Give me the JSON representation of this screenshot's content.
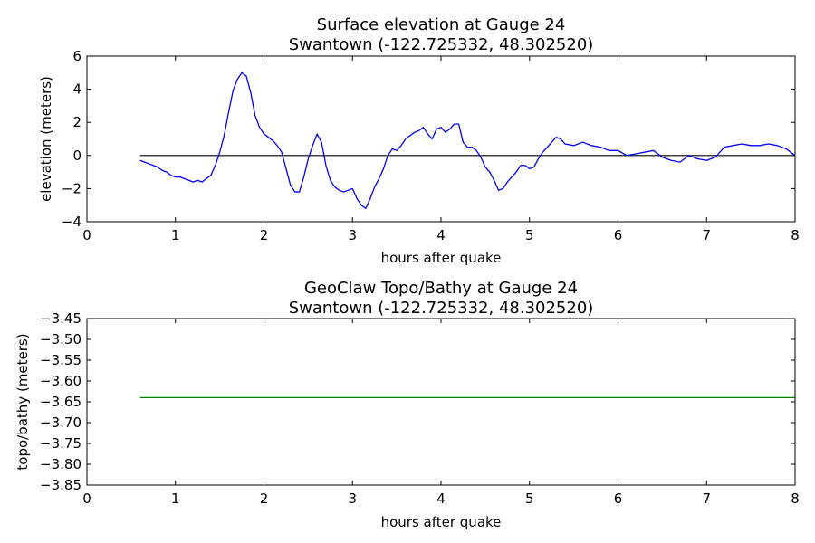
{
  "chart_data": [
    {
      "type": "line",
      "title": "Surface elevation at Gauge 24",
      "subtitle": "Swantown  (-122.725332, 48.302520)",
      "xlabel": "hours after quake",
      "ylabel": "elevation (meters)",
      "xlim": [
        0,
        8
      ],
      "ylim": [
        -4,
        6
      ],
      "xticks": [
        0,
        1,
        2,
        3,
        4,
        5,
        6,
        7,
        8
      ],
      "yticks": [
        -4,
        -2,
        0,
        2,
        4,
        6
      ],
      "grid": false,
      "reference_line": {
        "y": 0,
        "x": [
          0.6,
          8
        ],
        "color": "#000000"
      },
      "series": [
        {
          "color": "#0000ff",
          "x": [
            0.6,
            0.65,
            0.7,
            0.75,
            0.8,
            0.85,
            0.9,
            0.95,
            1.0,
            1.05,
            1.1,
            1.15,
            1.2,
            1.25,
            1.3,
            1.35,
            1.4,
            1.45,
            1.5,
            1.55,
            1.6,
            1.65,
            1.7,
            1.75,
            1.8,
            1.85,
            1.9,
            1.95,
            2.0,
            2.05,
            2.1,
            2.15,
            2.2,
            2.25,
            2.3,
            2.35,
            2.4,
            2.45,
            2.5,
            2.55,
            2.6,
            2.65,
            2.7,
            2.75,
            2.8,
            2.85,
            2.9,
            2.95,
            3.0,
            3.05,
            3.1,
            3.15,
            3.2,
            3.25,
            3.3,
            3.35,
            3.4,
            3.45,
            3.5,
            3.55,
            3.6,
            3.65,
            3.7,
            3.75,
            3.8,
            3.85,
            3.9,
            3.95,
            4.0,
            4.05,
            4.1,
            4.15,
            4.2,
            4.25,
            4.3,
            4.35,
            4.4,
            4.45,
            4.5,
            4.55,
            4.6,
            4.65,
            4.7,
            4.75,
            4.8,
            4.85,
            4.9,
            4.95,
            5.0,
            5.05,
            5.1,
            5.15,
            5.2,
            5.25,
            5.3,
            5.35,
            5.4,
            5.5,
            5.6,
            5.7,
            5.8,
            5.9,
            6.0,
            6.1,
            6.2,
            6.3,
            6.4,
            6.5,
            6.6,
            6.7,
            6.8,
            6.9,
            7.0,
            7.1,
            7.2,
            7.3,
            7.4,
            7.5,
            7.6,
            7.7,
            7.8,
            7.9,
            8.0
          ],
          "y": [
            -0.3,
            -0.4,
            -0.5,
            -0.6,
            -0.7,
            -0.9,
            -1.0,
            -1.2,
            -1.3,
            -1.3,
            -1.4,
            -1.5,
            -1.6,
            -1.5,
            -1.6,
            -1.4,
            -1.2,
            -0.6,
            0.2,
            1.2,
            2.6,
            3.9,
            4.6,
            5.0,
            4.8,
            3.8,
            2.4,
            1.7,
            1.3,
            1.1,
            0.9,
            0.6,
            0.2,
            -0.8,
            -1.8,
            -2.2,
            -2.2,
            -1.3,
            -0.2,
            0.6,
            1.3,
            0.8,
            -0.6,
            -1.5,
            -1.9,
            -2.1,
            -2.2,
            -2.1,
            -2.0,
            -2.6,
            -3.0,
            -3.2,
            -2.6,
            -1.9,
            -1.4,
            -0.8,
            0.0,
            0.4,
            0.3,
            0.6,
            1.0,
            1.2,
            1.4,
            1.5,
            1.7,
            1.3,
            1.0,
            1.6,
            1.7,
            1.4,
            1.6,
            1.9,
            1.9,
            0.8,
            0.5,
            0.5,
            0.3,
            -0.1,
            -0.7,
            -1.0,
            -1.5,
            -2.1,
            -2.0,
            -1.6,
            -1.3,
            -1.0,
            -0.6,
            -0.6,
            -0.8,
            -0.7,
            -0.2,
            0.2,
            0.5,
            0.8,
            1.1,
            1.0,
            0.7,
            0.6,
            0.8,
            0.6,
            0.5,
            0.3,
            0.3,
            0.0,
            0.1,
            0.2,
            0.3,
            -0.1,
            -0.3,
            -0.4,
            0.0,
            -0.2,
            -0.3,
            -0.1,
            0.5,
            0.6,
            0.7,
            0.6,
            0.6,
            0.7,
            0.6,
            0.4,
            0.0
          ]
        }
      ]
    },
    {
      "type": "line",
      "title": "GeoClaw Topo/Bathy at Gauge 24",
      "subtitle": "Swantown  (-122.725332, 48.302520)",
      "xlabel": "hours after quake",
      "ylabel": "topo/bathy (meters)",
      "xlim": [
        0,
        8
      ],
      "ylim": [
        -3.85,
        -3.45
      ],
      "xticks": [
        0,
        1,
        2,
        3,
        4,
        5,
        6,
        7,
        8
      ],
      "yticks": [
        -3.85,
        -3.8,
        -3.75,
        -3.7,
        -3.65,
        -3.6,
        -3.55,
        -3.5,
        -3.45
      ],
      "ytick_labels": [
        "−3.85",
        "−3.80",
        "−3.75",
        "−3.70",
        "−3.65",
        "−3.60",
        "−3.55",
        "−3.50",
        "−3.45"
      ],
      "grid": false,
      "series": [
        {
          "color": "#008000",
          "x": [
            0.6,
            8.0
          ],
          "y": [
            -3.64,
            -3.64
          ]
        }
      ]
    }
  ]
}
